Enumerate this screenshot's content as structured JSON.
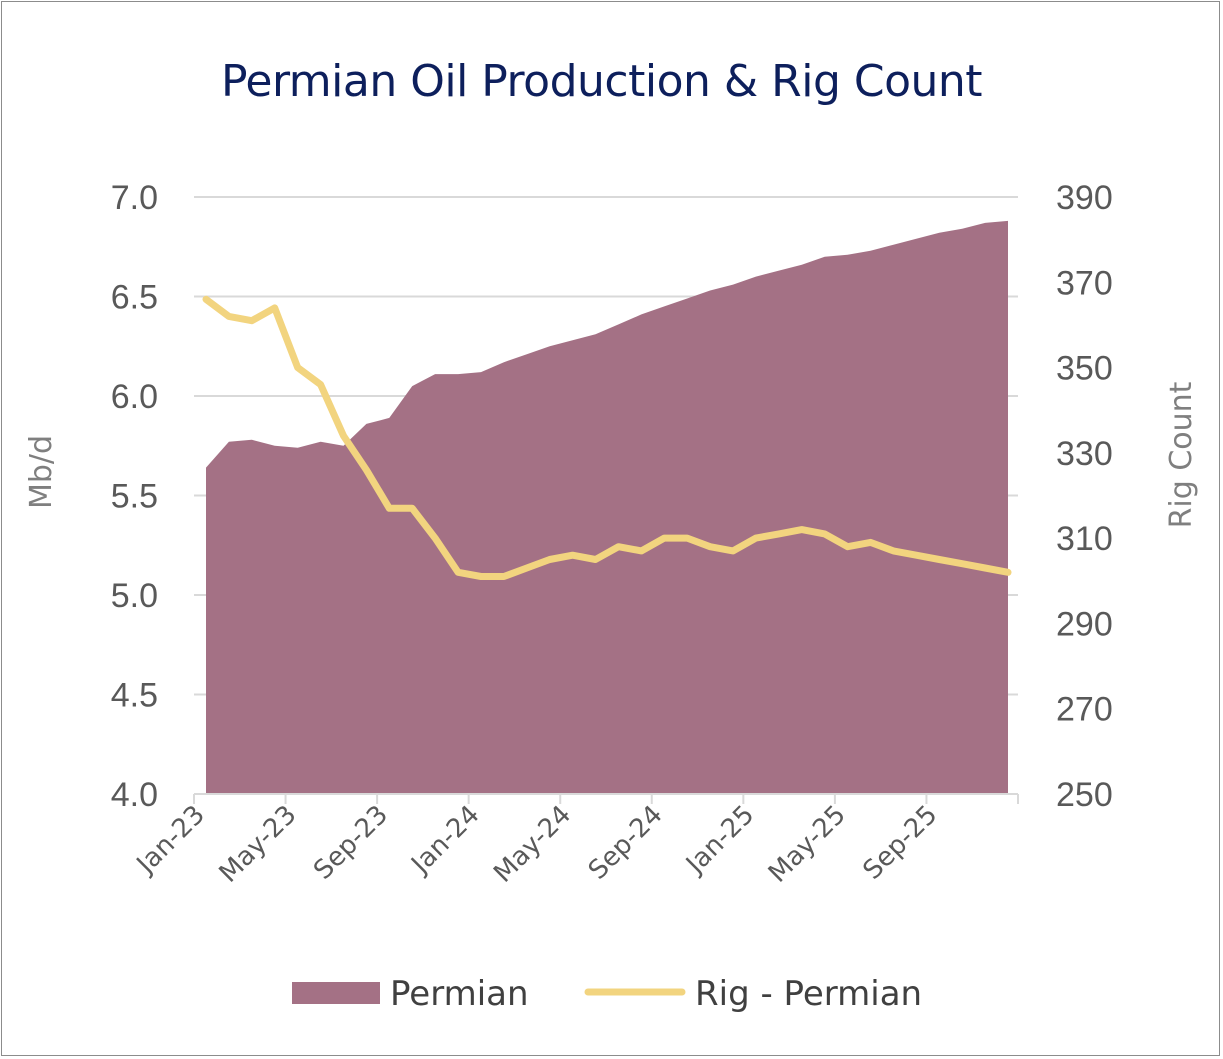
{
  "chart_data": {
    "type": "area",
    "title": "Permian Oil Production & Rig Count",
    "ylabel_left": "Mb/d",
    "ylabel_right": "Rig Count",
    "ylim_left": [
      4.0,
      7.0
    ],
    "ylim_right": [
      250,
      390
    ],
    "yticks_left": [
      "4.0",
      "4.5",
      "5.0",
      "5.5",
      "6.0",
      "6.5",
      "7.0"
    ],
    "yticks_right": [
      "250",
      "270",
      "290",
      "310",
      "330",
      "350",
      "370",
      "390"
    ],
    "x_tick_labels": [
      "Jan-23",
      "May-23",
      "Sep-23",
      "Jan-24",
      "May-24",
      "Sep-24",
      "Jan-25",
      "May-25",
      "Sep-25"
    ],
    "grid": "horizontal",
    "legend_position": "bottom",
    "x": [
      "Jan-23",
      "Feb-23",
      "Mar-23",
      "Apr-23",
      "May-23",
      "Jun-23",
      "Jul-23",
      "Aug-23",
      "Sep-23",
      "Oct-23",
      "Nov-23",
      "Dec-23",
      "Jan-24",
      "Feb-24",
      "Mar-24",
      "Apr-24",
      "May-24",
      "Jun-24",
      "Jul-24",
      "Aug-24",
      "Sep-24",
      "Oct-24",
      "Nov-24",
      "Dec-24",
      "Jan-25",
      "Feb-25",
      "Mar-25",
      "Apr-25",
      "May-25",
      "Jun-25",
      "Jul-25",
      "Aug-25",
      "Sep-25",
      "Oct-25",
      "Nov-25",
      "Dec-25"
    ],
    "series": [
      {
        "name": "Permian",
        "type": "area",
        "axis": "left",
        "color": "#a47185",
        "values": [
          5.64,
          5.77,
          5.78,
          5.75,
          5.74,
          5.77,
          5.75,
          5.86,
          5.89,
          6.05,
          6.11,
          6.11,
          6.12,
          6.17,
          6.21,
          6.25,
          6.28,
          6.31,
          6.36,
          6.41,
          6.45,
          6.49,
          6.53,
          6.56,
          6.6,
          6.63,
          6.66,
          6.7,
          6.71,
          6.73,
          6.76,
          6.79,
          6.82,
          6.84,
          6.87,
          6.88
        ]
      },
      {
        "name": "Rig - Permian",
        "type": "line",
        "axis": "right",
        "color": "#f2d47f",
        "values": [
          366,
          362,
          361,
          364,
          350,
          346,
          334,
          326,
          317,
          317,
          310,
          302,
          301,
          301,
          303,
          305,
          306,
          305,
          308,
          307,
          310,
          310,
          308,
          307,
          310,
          311,
          312,
          311,
          308,
          309,
          307,
          306,
          305,
          304,
          303,
          302
        ]
      }
    ]
  }
}
